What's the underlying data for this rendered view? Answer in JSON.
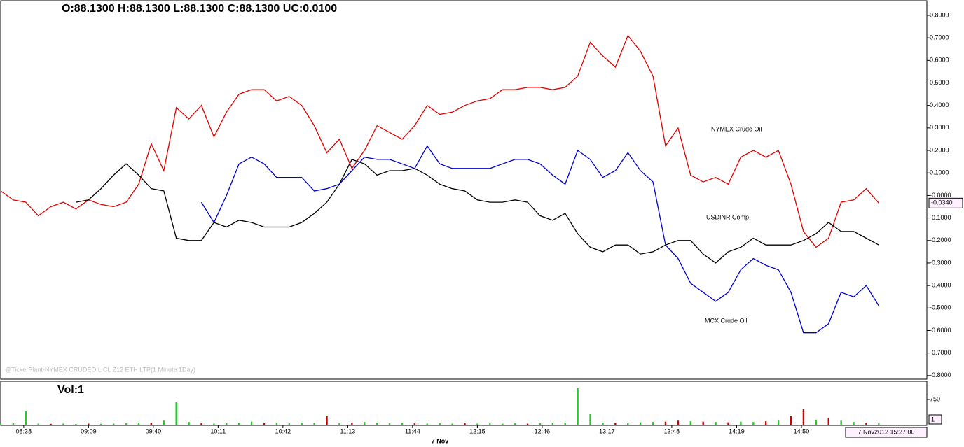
{
  "chart_data": {
    "type": "line",
    "header": "O:88.1300  H:88.1300  L:88.1300  C:88.1300  UC:0.0100",
    "watermark": "@TickerPlant-NYMEX CRUDEOIL  CL Z12 ETH LTP(1 Minute:1Day)",
    "date_label": "7 Nov",
    "cursor_label": "7 Nov2012 15:27:00",
    "grid": false,
    "x": [
      507,
      513,
      519,
      525,
      531,
      537,
      543,
      549,
      555,
      561,
      567,
      573,
      579,
      585,
      591,
      597,
      603,
      609,
      615,
      621,
      627,
      633,
      639,
      645,
      651,
      657,
      663,
      669,
      675,
      681,
      687,
      693,
      699,
      705,
      711,
      717,
      723,
      729,
      735,
      741,
      747,
      753,
      759,
      765,
      771,
      777,
      783,
      789,
      795,
      801,
      807,
      813,
      819,
      825,
      831,
      837,
      843,
      849,
      855,
      861,
      867,
      873,
      879,
      885,
      891,
      897,
      903,
      909,
      915,
      921,
      927
    ],
    "xlim": [
      507,
      950
    ],
    "xticks": [
      {
        "value": 518,
        "label": "08:38"
      },
      {
        "value": 549,
        "label": "09:09"
      },
      {
        "value": 580,
        "label": "09:40"
      },
      {
        "value": 611,
        "label": "10:11"
      },
      {
        "value": 642,
        "label": "10:42"
      },
      {
        "value": 673,
        "label": "11:13"
      },
      {
        "value": 704,
        "label": "11:44"
      },
      {
        "value": 735,
        "label": "12:15"
      },
      {
        "value": 766,
        "label": "12:46"
      },
      {
        "value": 797,
        "label": "13:17"
      },
      {
        "value": 828,
        "label": "13:48"
      },
      {
        "value": 859,
        "label": "14:19"
      },
      {
        "value": 890,
        "label": "14:50"
      }
    ],
    "ylim": [
      -0.816,
      0.862
    ],
    "yticks": [
      {
        "value": 0.8,
        "label": "0.8000"
      },
      {
        "value": 0.7,
        "label": "0.7000"
      },
      {
        "value": 0.6,
        "label": "0.6000"
      },
      {
        "value": 0.5,
        "label": "0.5000"
      },
      {
        "value": 0.4,
        "label": "0.4000"
      },
      {
        "value": 0.3,
        "label": "0.3000"
      },
      {
        "value": 0.2,
        "label": "0.2000"
      },
      {
        "value": 0.1,
        "label": "0.1000"
      },
      {
        "value": 0,
        "label": "-0.0000"
      },
      {
        "value": -0.1,
        "label": "-0.1000"
      },
      {
        "value": -0.2,
        "label": "-0.2000"
      },
      {
        "value": -0.3,
        "label": "-0.3000"
      },
      {
        "value": -0.4,
        "label": "-0.4000"
      },
      {
        "value": -0.5,
        "label": "-0.5000"
      },
      {
        "value": -0.6,
        "label": "-0.6000"
      },
      {
        "value": -0.7,
        "label": "-0.7000"
      },
      {
        "value": -0.8,
        "label": "-0.8000"
      }
    ],
    "series": [
      {
        "name": "NYMEX Crude Oil",
        "color": "#e00000",
        "values": [
          0.02,
          -0.02,
          -0.03,
          -0.09,
          -0.05,
          -0.03,
          -0.06,
          -0.02,
          -0.04,
          -0.05,
          -0.03,
          0.05,
          0.23,
          0.11,
          0.39,
          0.34,
          0.4,
          0.26,
          0.37,
          0.45,
          0.47,
          0.47,
          0.42,
          0.44,
          0.4,
          0.31,
          0.19,
          0.25,
          0.12,
          0.2,
          0.31,
          0.28,
          0.25,
          0.31,
          0.4,
          0.36,
          0.37,
          0.4,
          0.42,
          0.43,
          0.47,
          0.47,
          0.48,
          0.48,
          0.47,
          0.48,
          0.53,
          0.68,
          0.62,
          0.57,
          0.71,
          0.64,
          0.53,
          0.22,
          0.3,
          0.09,
          0.06,
          0.08,
          0.05,
          0.17,
          0.2,
          0.17,
          0.2,
          0.05,
          -0.16,
          -0.23,
          -0.19,
          -0.03,
          -0.02,
          0.03,
          -0.034
        ],
        "last_value": {
          "value": -0.034,
          "label": "-0.0340"
        }
      },
      {
        "name": "USDINR Comp",
        "color": "#000000",
        "values": [
          null,
          null,
          null,
          null,
          null,
          null,
          -0.03,
          -0.02,
          0.03,
          0.09,
          0.14,
          0.09,
          0.03,
          0.02,
          -0.19,
          -0.2,
          -0.2,
          -0.12,
          -0.14,
          -0.11,
          -0.12,
          -0.14,
          -0.14,
          -0.14,
          -0.12,
          -0.08,
          -0.03,
          0.05,
          0.16,
          0.14,
          0.09,
          0.11,
          0.11,
          0.12,
          0.09,
          0.05,
          0.03,
          0.02,
          -0.02,
          -0.03,
          -0.03,
          -0.02,
          -0.03,
          -0.09,
          -0.11,
          -0.08,
          -0.17,
          -0.23,
          -0.25,
          -0.22,
          -0.22,
          -0.26,
          -0.25,
          -0.22,
          -0.2,
          -0.2,
          -0.26,
          -0.3,
          -0.25,
          -0.23,
          -0.19,
          -0.22,
          -0.22,
          -0.22,
          -0.2,
          -0.17,
          -0.12,
          -0.16,
          -0.16,
          -0.19,
          -0.22
        ]
      },
      {
        "name": "MCX Crude Oil",
        "color": "#0000cc",
        "values": [
          null,
          null,
          null,
          null,
          null,
          null,
          null,
          null,
          null,
          null,
          null,
          null,
          null,
          null,
          null,
          null,
          -0.03,
          -0.12,
          0.0,
          0.14,
          0.17,
          0.14,
          0.08,
          0.08,
          0.08,
          0.02,
          0.03,
          0.05,
          0.11,
          0.17,
          0.16,
          0.16,
          0.14,
          0.12,
          0.22,
          0.14,
          0.12,
          0.12,
          0.12,
          0.12,
          0.14,
          0.16,
          0.16,
          0.14,
          0.09,
          0.05,
          0.2,
          0.16,
          0.08,
          0.11,
          0.19,
          0.11,
          0.06,
          -0.22,
          -0.28,
          -0.39,
          -0.43,
          -0.47,
          -0.43,
          -0.33,
          -0.28,
          -0.31,
          -0.33,
          -0.43,
          -0.61,
          -0.61,
          -0.57,
          -0.43,
          -0.45,
          -0.4,
          -0.49
        ]
      }
    ],
    "volume": {
      "title": "Vol:1",
      "current_label": "1",
      "ylim": [
        0,
        1270
      ],
      "yticks": [
        750
      ],
      "values": [
        30,
        40,
        400,
        30,
        25,
        30,
        20,
        30,
        25,
        30,
        40,
        60,
        50,
        120,
        667,
        80,
        40,
        30,
        40,
        50,
        90,
        40,
        50,
        40,
        60,
        50,
        250,
        40,
        60,
        80,
        60,
        40,
        50,
        40,
        30,
        40,
        30,
        40,
        30,
        40,
        30,
        40,
        30,
        40,
        50,
        60,
        1083,
        312,
        60,
        50,
        40,
        70,
        80,
        90,
        120,
        100,
        90,
        80,
        70,
        90,
        80,
        100,
        120,
        250,
        458,
        150,
        200,
        120,
        80,
        50,
        40
      ],
      "colors": [
        "#22cc22",
        "#22cc22",
        "#22cc22",
        "#22cc22",
        "#cc0000",
        "#22cc22",
        "#22cc22",
        "#cc0000",
        "#22cc22",
        "#22cc22",
        "#22cc22",
        "#22cc22",
        "#cc0000",
        "#22cc22",
        "#22cc22",
        "#22cc22",
        "#cc0000",
        "#22cc22",
        "#22cc22",
        "#22cc22",
        "#22cc22",
        "#cc0000",
        "#22cc22",
        "#22cc22",
        "#22cc22",
        "#22cc22",
        "#cc0000",
        "#22cc22",
        "#cc0000",
        "#22cc22",
        "#22cc22",
        "#22cc22",
        "#22cc22",
        "#cc0000",
        "#22cc22",
        "#22cc22",
        "#22cc22",
        "#cc0000",
        "#22cc22",
        "#22cc22",
        "#22cc22",
        "#22cc22",
        "#cc0000",
        "#22cc22",
        "#22cc22",
        "#22cc22",
        "#22cc22",
        "#22cc22",
        "#22cc22",
        "#cc0000",
        "#22cc22",
        "#22cc22",
        "#22cc22",
        "#cc0000",
        "#cc0000",
        "#22cc22",
        "#cc0000",
        "#22cc22",
        "#cc0000",
        "#22cc22",
        "#22cc22",
        "#cc0000",
        "#22cc22",
        "#cc0000",
        "#cc0000",
        "#22cc22",
        "#cc0000",
        "#22cc22",
        "#22cc22",
        "#cc0000",
        "#22cc22"
      ]
    }
  }
}
